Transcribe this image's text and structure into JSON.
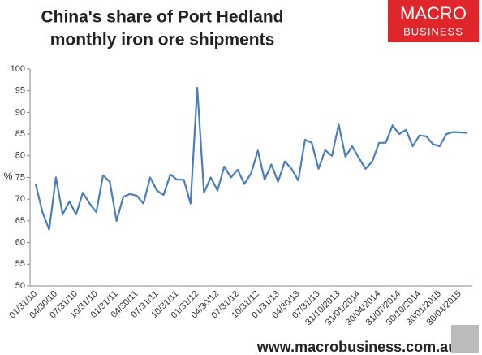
{
  "chart_data": {
    "type": "line",
    "title": [
      "China's share of Port Hedland",
      "monthly iron ore shipments"
    ],
    "ylabel": "%",
    "color": "#4a7ebb",
    "ylim": [
      50,
      100
    ],
    "yticks": [
      50,
      55,
      60,
      65,
      70,
      75,
      80,
      85,
      90,
      95,
      100
    ],
    "categories": [
      "01/31/10",
      null,
      null,
      "04/30/10",
      null,
      null,
      "07/31/10",
      null,
      null,
      "10/31/10",
      null,
      null,
      "01/31/11",
      null,
      null,
      "04/30/11",
      null,
      null,
      "07/31/11",
      null,
      null,
      "10/31/11",
      null,
      null,
      "01/31/12",
      null,
      null,
      "04/30/12",
      null,
      null,
      "07/31/12",
      null,
      null,
      "10/31/12",
      null,
      null,
      "01/31/13",
      null,
      null,
      "04/30/13",
      null,
      null,
      "07/31/13",
      null,
      null,
      "31/10/2013",
      null,
      null,
      "31/01/2014",
      null,
      null,
      "30/04/2014",
      null,
      null,
      "31/07/2014",
      null,
      null,
      "30/10/2014",
      null,
      null,
      "30/01/2015",
      null,
      null,
      "30/04/2015",
      null
    ],
    "values": [
      73.5,
      67,
      63,
      75,
      66.5,
      69.5,
      66.5,
      71.5,
      69,
      67,
      75.5,
      74,
      65,
      70.5,
      71.2,
      70.8,
      69,
      75,
      72,
      71,
      75.7,
      74.5,
      74.5,
      69,
      95.7,
      71.5,
      75,
      72,
      77.5,
      75,
      76.8,
      73.5,
      76,
      81.2,
      74.5,
      78,
      74,
      78.7,
      77,
      74.3,
      83.7,
      83,
      77,
      81.3,
      80,
      87.2,
      79.8,
      82.2,
      79.5,
      77,
      78.7,
      83,
      83,
      87,
      85,
      86,
      82.2,
      84.7,
      84.5,
      82.7,
      82.2,
      85,
      85.5,
      85.4,
      85.3
    ]
  },
  "logo": [
    "MACRO",
    "BUSINESS"
  ],
  "footer": "www.macrobusiness.com.au"
}
